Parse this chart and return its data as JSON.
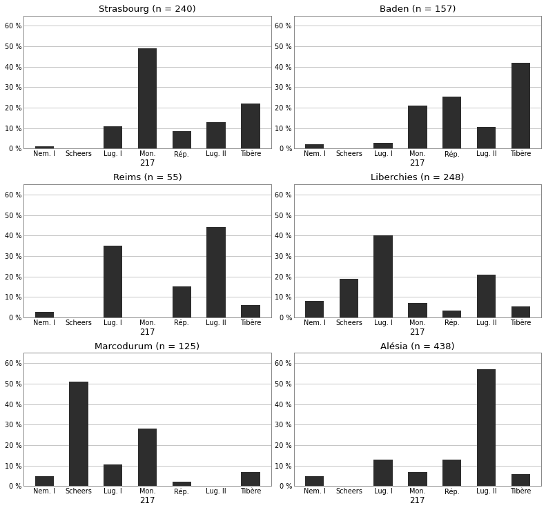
{
  "subplots": [
    {
      "title": "Strasbourg (n = 240)",
      "xlabel": "217",
      "categories": [
        "Nem. I",
        "Scheers",
        "Lug. I",
        "Mon.",
        "Rép.",
        "Lug. II",
        "Tibère"
      ],
      "values": [
        1,
        0,
        11,
        49,
        8.5,
        13,
        22
      ]
    },
    {
      "title": "Baden (n = 157)",
      "xlabel": "217",
      "categories": [
        "Nem. I",
        "Scheers",
        "Lug. I",
        "Mon.",
        "Rép.",
        "Lug. II",
        "Tibère"
      ],
      "values": [
        2,
        0,
        3,
        21,
        25.5,
        10.5,
        42
      ]
    },
    {
      "title": "Reims (n = 55)",
      "xlabel": "217",
      "categories": [
        "Nem. I",
        "Scheers",
        "Lug. I",
        "Mon.",
        "Rép.",
        "Lug. II",
        "Tibère"
      ],
      "values": [
        2.5,
        0,
        35,
        0,
        15,
        44,
        6
      ]
    },
    {
      "title": "Liberchies (n = 248)",
      "xlabel": "217",
      "categories": [
        "Nem. I",
        "Scheers",
        "Lug. I",
        "Mon.",
        "Rép.",
        "Lug. II",
        "Tibère"
      ],
      "values": [
        8,
        19,
        40,
        7,
        3.5,
        21,
        5.5
      ]
    },
    {
      "title": "Marcodurum (n = 125)",
      "xlabel": "217",
      "categories": [
        "Nem. I",
        "Scheers",
        "Lug. I",
        "Mon.",
        "Rép.",
        "Lug. II",
        "Tibère"
      ],
      "values": [
        5,
        51,
        10.5,
        28,
        2,
        0,
        7
      ]
    },
    {
      "title": "Alésia (n = 438)",
      "xlabel": "217",
      "categories": [
        "Nem. I",
        "Scheers",
        "Lug. I",
        "Mon.",
        "Rép.",
        "Lug. II",
        "Tibère"
      ],
      "values": [
        5,
        0,
        13,
        7,
        13,
        57,
        6
      ]
    }
  ],
  "bar_color": "#2d2d2d",
  "ylim": [
    0,
    65
  ],
  "yticks": [
    0,
    10,
    20,
    30,
    40,
    50,
    60
  ],
  "ytick_labels": [
    "0 %",
    "10 %",
    "20 %",
    "30 %",
    "40 %",
    "50 %",
    "60 %"
  ],
  "background_color": "#ffffff",
  "figure_background": "#ffffff",
  "title_fontsize": 9.5,
  "tick_fontsize": 7,
  "xlabel_fontsize": 8.5,
  "bar_width": 0.55,
  "grid_color": "#bbbbbb",
  "grid_linewidth": 0.6,
  "spine_color": "#888888",
  "spine_linewidth": 0.7
}
